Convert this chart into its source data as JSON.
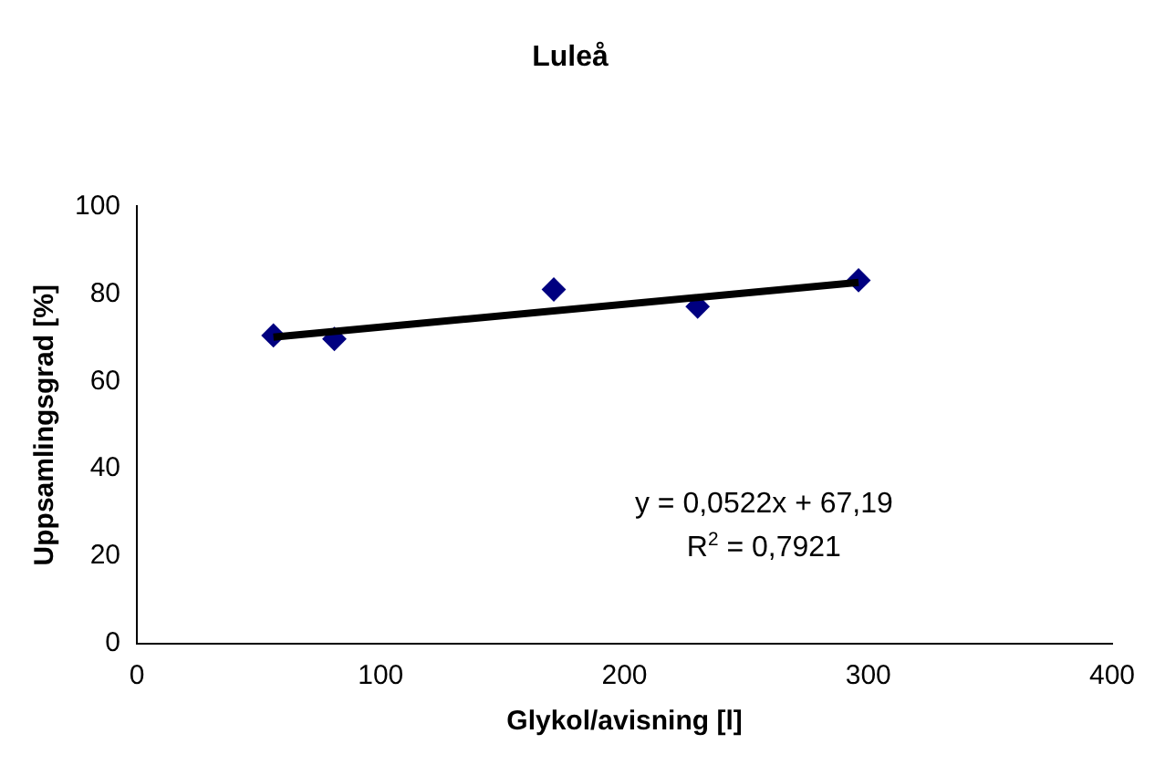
{
  "chart_data": {
    "type": "scatter",
    "title": "Luleå",
    "xlabel": "Glykol/avisning [l]",
    "ylabel": "Uppsamlingsgrad [%]",
    "xlim": [
      0,
      400
    ],
    "xticks": [
      0,
      100,
      200,
      300,
      400
    ],
    "ylim": [
      0,
      100
    ],
    "yticks": [
      0,
      20,
      40,
      60,
      80,
      100
    ],
    "grid": false,
    "legend": false,
    "marker": "diamond",
    "series": [
      {
        "color": "#000080",
        "x": [
          56,
          81,
          171,
          230,
          296
        ],
        "values": [
          70.5,
          69.7,
          81,
          77.1,
          83.1
        ]
      },
      {
        "type": "line",
        "color": "#000000",
        "marker": "none",
        "x": [
          56,
          296
        ],
        "values": [
          70.11,
          82.64
        ]
      }
    ],
    "annotations": [
      "y = 0,0522x + 67,19",
      "R$^{2}$ = 0,7921"
    ]
  }
}
